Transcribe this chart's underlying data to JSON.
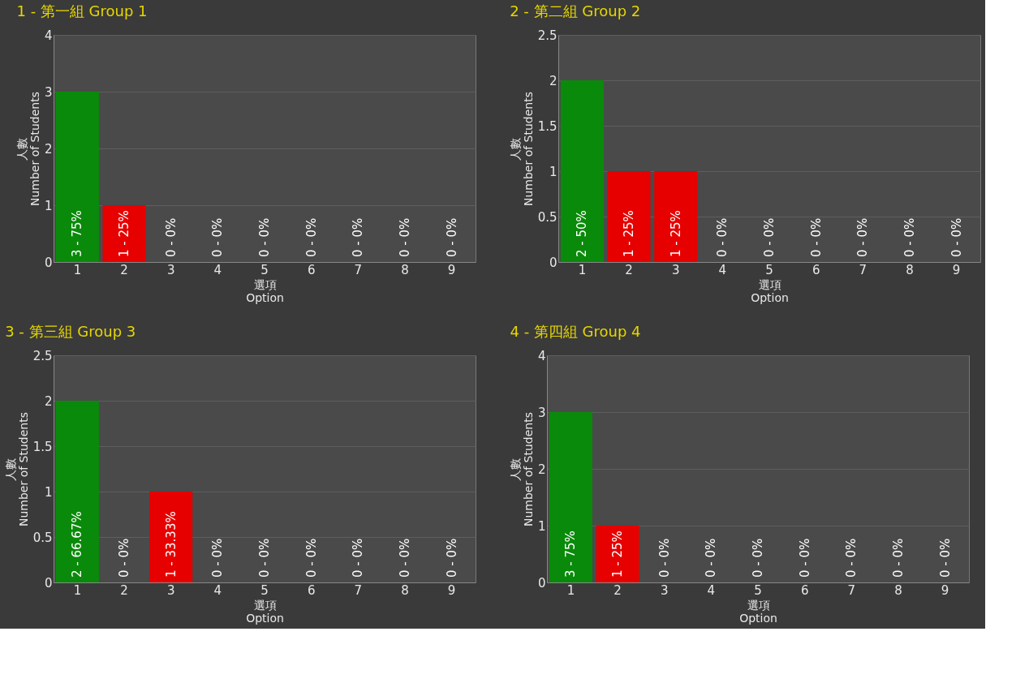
{
  "chart_data": [
    {
      "type": "bar",
      "title": "1 - 第一組 Group 1",
      "xlabel": "選項\nOption",
      "ylabel": "人數\nNumber of Students",
      "categories": [
        "1",
        "2",
        "3",
        "4",
        "5",
        "6",
        "7",
        "8",
        "9"
      ],
      "values": [
        3,
        1,
        0,
        0,
        0,
        0,
        0,
        0,
        0
      ],
      "colors": [
        "#0a8a0a",
        "#e60000",
        "#e60000",
        "#e60000",
        "#e60000",
        "#e60000",
        "#e60000",
        "#e60000",
        "#e60000"
      ],
      "value_labels": [
        "3 - 75%",
        "1 - 25%",
        "0 - 0%",
        "0 - 0%",
        "0 - 0%",
        "0 - 0%",
        "0 - 0%",
        "0 - 0%",
        "0 - 0%"
      ],
      "ylim": [
        0,
        4
      ],
      "yticks": [
        0,
        1,
        2,
        3,
        4
      ],
      "grid": "y",
      "legend": false
    },
    {
      "type": "bar",
      "title": "2 - 第二組 Group 2",
      "xlabel": "選項\nOption",
      "ylabel": "人數\nNumber of Students",
      "categories": [
        "1",
        "2",
        "3",
        "4",
        "5",
        "6",
        "7",
        "8",
        "9"
      ],
      "values": [
        2,
        1,
        1,
        0,
        0,
        0,
        0,
        0,
        0
      ],
      "colors": [
        "#0a8a0a",
        "#e60000",
        "#e60000",
        "#e60000",
        "#e60000",
        "#e60000",
        "#e60000",
        "#e60000",
        "#e60000"
      ],
      "value_labels": [
        "2 - 50%",
        "1 - 25%",
        "1 - 25%",
        "0 - 0%",
        "0 - 0%",
        "0 - 0%",
        "0 - 0%",
        "0 - 0%",
        "0 - 0%"
      ],
      "ylim": [
        0,
        2.5
      ],
      "yticks": [
        0,
        0.5,
        1,
        1.5,
        2,
        2.5
      ],
      "grid": "y",
      "legend": false
    },
    {
      "type": "bar",
      "title": "3 - 第三組 Group 3",
      "xlabel": "選項\nOption",
      "ylabel": "人數\nNumber of Students",
      "categories": [
        "1",
        "2",
        "3",
        "4",
        "5",
        "6",
        "7",
        "8",
        "9"
      ],
      "values": [
        2,
        0,
        1,
        0,
        0,
        0,
        0,
        0,
        0
      ],
      "colors": [
        "#0a8a0a",
        "#e60000",
        "#e60000",
        "#e60000",
        "#e60000",
        "#e60000",
        "#e60000",
        "#e60000",
        "#e60000"
      ],
      "value_labels": [
        "2 - 66.67%",
        "0 - 0%",
        "1 - 33.33%",
        "0 - 0%",
        "0 - 0%",
        "0 - 0%",
        "0 - 0%",
        "0 - 0%",
        "0 - 0%"
      ],
      "ylim": [
        0,
        2.5
      ],
      "yticks": [
        0,
        0.5,
        1,
        1.5,
        2,
        2.5
      ],
      "grid": "y",
      "legend": false
    },
    {
      "type": "bar",
      "title": "4 - 第四組 Group 4",
      "xlabel": "選項\nOption",
      "ylabel": "人數\nNumber of Students",
      "categories": [
        "1",
        "2",
        "3",
        "4",
        "5",
        "6",
        "7",
        "8",
        "9"
      ],
      "values": [
        3,
        1,
        0,
        0,
        0,
        0,
        0,
        0,
        0
      ],
      "colors": [
        "#0a8a0a",
        "#e60000",
        "#e60000",
        "#e60000",
        "#e60000",
        "#e60000",
        "#e60000",
        "#e60000",
        "#e60000"
      ],
      "value_labels": [
        "3 - 75%",
        "1 - 25%",
        "0 - 0%",
        "0 - 0%",
        "0 - 0%",
        "0 - 0%",
        "0 - 0%",
        "0 - 0%",
        "0 - 0%"
      ],
      "ylim": [
        0,
        4
      ],
      "yticks": [
        0,
        1,
        2,
        3,
        4
      ],
      "grid": "y",
      "legend": false
    }
  ]
}
